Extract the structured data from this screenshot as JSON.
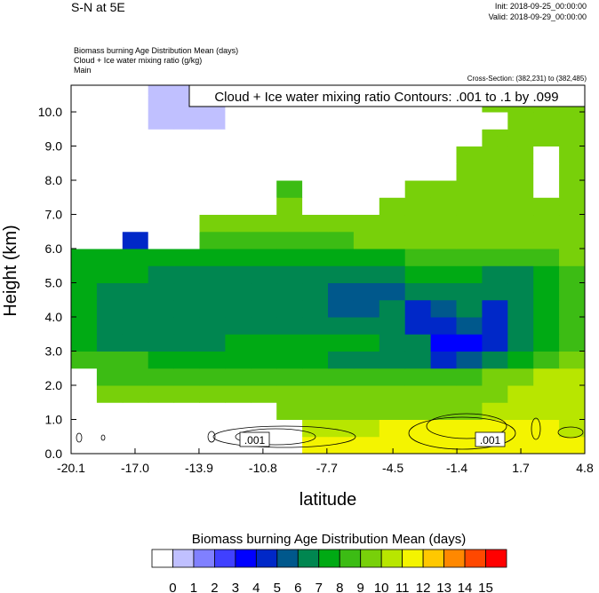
{
  "header": {
    "title": "S-N at 5E",
    "init": "Init: 2018-09-25_00:00:00",
    "valid": "Valid: 2018-09-29_00:00:00",
    "field1": "Biomass burning Age Distribution Mean   (days)",
    "field2": "Cloud + Ice water mixing ratio   (g/kg)",
    "field3": "Main",
    "cross_section": "Cross-Section: (382,231) to (382,485)"
  },
  "chart_data": {
    "type": "heatmap",
    "title": "Cloud + Ice water mixing ratio Contours: .001 to .1 by .099",
    "xlabel": "latitude",
    "ylabel": "Height (km)",
    "xlim": [
      -20.1,
      4.8
    ],
    "ylim": [
      0,
      10.78
    ],
    "x_ticks": [
      "-20.1",
      "-17.0",
      "-13.9",
      "-10.8",
      "-7.7",
      "-4.5",
      "-1.4",
      "1.7",
      "4.8"
    ],
    "x_tick_values": [
      -20.1,
      -17.0,
      -13.9,
      -10.8,
      -7.7,
      -4.5,
      -1.4,
      1.7,
      4.8
    ],
    "y_ticks": [
      "0.0",
      "1.0",
      "2.0",
      "3.0",
      "4.0",
      "5.0",
      "6.0",
      "7.0",
      "8.0",
      "9.0",
      "10.0"
    ],
    "y_tick_values": [
      0,
      1,
      2,
      3,
      4,
      5,
      6,
      7,
      8,
      9,
      10
    ],
    "grid_x_centers": [
      -19.5,
      -18.3,
      -17.0,
      -15.8,
      -14.5,
      -13.3,
      -12.0,
      -10.8,
      -9.5,
      -8.3,
      -7.0,
      -5.8,
      -4.5,
      -3.3,
      -2.0,
      -0.8,
      0.5,
      1.7,
      3.0,
      4.2
    ],
    "grid_row_height_km": 0.5,
    "values_bottom_to_top_days": [
      [
        -1,
        -1,
        -1,
        -1,
        -1,
        -1,
        -1,
        -1,
        -1,
        11.5,
        11.5,
        11.5,
        11.5,
        11.5,
        11.5,
        11.5,
        11.5,
        11.5,
        11.5,
        11.5
      ],
      [
        -1,
        -1,
        -1,
        -1,
        -1,
        -1,
        -1,
        -1,
        -1,
        10.5,
        10.5,
        10.5,
        11.5,
        11.5,
        11.5,
        11.5,
        11.5,
        11.5,
        11.5,
        10.5
      ],
      [
        -1,
        -1,
        -1,
        -1,
        -1,
        -1,
        -1,
        -1,
        9.5,
        9.5,
        9.5,
        9.5,
        9.5,
        9.5,
        9.5,
        9.5,
        10.5,
        10.5,
        10.5,
        10.5
      ],
      [
        -1,
        9.5,
        9.5,
        9.5,
        9.5,
        9.5,
        9.5,
        9.5,
        9.5,
        9.5,
        9.5,
        9.5,
        9.5,
        9.5,
        9.5,
        9.5,
        9.5,
        10.5,
        10.5,
        10.5
      ],
      [
        -1,
        8.5,
        8.5,
        8.5,
        8.5,
        8.5,
        8.5,
        8.5,
        8.5,
        8.5,
        8.5,
        8.5,
        8.5,
        8.5,
        8.5,
        8.5,
        9.5,
        9.5,
        10.5,
        10.5
      ],
      [
        8.5,
        8.5,
        8.5,
        7.5,
        7.5,
        7.5,
        7.5,
        7.5,
        7.5,
        7.5,
        6.5,
        6.5,
        6.5,
        6.5,
        4.5,
        5.5,
        6.5,
        7.5,
        8.5,
        9.5
      ],
      [
        7.5,
        6.5,
        6.5,
        6.5,
        6.5,
        6.5,
        7.5,
        7.5,
        7.5,
        7.5,
        7.5,
        7.5,
        6.5,
        6.5,
        3.5,
        3.5,
        4.5,
        6.5,
        7.5,
        8.5
      ],
      [
        7.5,
        6.5,
        6.5,
        6.5,
        6.5,
        6.5,
        6.5,
        6.5,
        6.5,
        6.5,
        6.5,
        6.5,
        6.5,
        4.5,
        4.5,
        5.5,
        4.5,
        6.5,
        7.5,
        8.5
      ],
      [
        7.5,
        6.5,
        6.5,
        6.5,
        6.5,
        6.5,
        6.5,
        6.5,
        6.5,
        6.5,
        5.5,
        5.5,
        6.5,
        4.5,
        5.5,
        6.5,
        4.5,
        6.5,
        7.5,
        8.5
      ],
      [
        7.5,
        6.5,
        6.5,
        6.5,
        6.5,
        6.5,
        6.5,
        6.5,
        6.5,
        6.5,
        5.5,
        5.5,
        5.5,
        6.5,
        6.5,
        6.5,
        6.5,
        6.5,
        7.5,
        8.5
      ],
      [
        7.5,
        7.5,
        7.5,
        6.5,
        6.5,
        6.5,
        6.5,
        6.5,
        6.5,
        6.5,
        6.5,
        6.5,
        6.5,
        7.5,
        7.5,
        7.5,
        6.5,
        6.5,
        7.5,
        8.5
      ],
      [
        7.5,
        7.5,
        7.5,
        7.5,
        7.5,
        7.5,
        7.5,
        7.5,
        7.5,
        7.5,
        7.5,
        7.5,
        7.5,
        8.5,
        8.5,
        8.5,
        8.5,
        8.5,
        8.5,
        9.5
      ],
      [
        -1,
        -1,
        4.5,
        -1,
        -1,
        8.5,
        8.5,
        8.5,
        8.5,
        8.5,
        8.5,
        9.5,
        9.5,
        9.5,
        9.5,
        9.5,
        9.5,
        9.5,
        9.5,
        9.5
      ],
      [
        -1,
        -1,
        -1,
        -1,
        -1,
        9.5,
        9.5,
        9.5,
        9.5,
        9.5,
        9.5,
        9.5,
        9.5,
        9.5,
        9.5,
        9.5,
        9.5,
        9.5,
        9.5,
        9.5
      ],
      [
        -1,
        -1,
        -1,
        -1,
        -1,
        -1,
        -1,
        -1,
        9.5,
        -1,
        -1,
        -1,
        9.5,
        9.5,
        9.5,
        9.5,
        9.5,
        9.5,
        9.5,
        9.5
      ],
      [
        -1,
        -1,
        -1,
        -1,
        -1,
        -1,
        -1,
        -1,
        8.5,
        -1,
        -1,
        -1,
        -1,
        9.5,
        9.5,
        9.5,
        9.5,
        9.5,
        -1,
        9.5
      ],
      [
        -1,
        -1,
        -1,
        -1,
        -1,
        -1,
        -1,
        -1,
        -1,
        -1,
        -1,
        -1,
        -1,
        -1,
        -1,
        9.5,
        9.5,
        9.5,
        -1,
        9.5
      ],
      [
        -1,
        -1,
        -1,
        -1,
        -1,
        -1,
        -1,
        -1,
        -1,
        -1,
        -1,
        -1,
        -1,
        -1,
        -1,
        9.5,
        9.5,
        9.5,
        -1,
        9.5
      ],
      [
        -1,
        -1,
        -1,
        -1,
        -1,
        -1,
        -1,
        -1,
        -1,
        -1,
        -1,
        -1,
        -1,
        -1,
        -1,
        -1,
        9,
        9.5,
        9.5,
        9.5
      ],
      [
        -1,
        -1,
        -1,
        0.5,
        0.5,
        0.5,
        -1,
        -1,
        -1,
        -1,
        -1,
        -1,
        -1,
        -1,
        -1,
        -1,
        -1,
        9.5,
        9.5,
        9.5
      ],
      [
        -1,
        -1,
        -1,
        0.5,
        0.5,
        0.5,
        -1,
        -1,
        -1,
        -1,
        -1,
        -1,
        -1,
        -1,
        -1,
        -1,
        9.5,
        9.5,
        9.5,
        9.5
      ],
      [
        -1,
        -1,
        -1,
        0.5,
        0.5,
        -1,
        0.5,
        -1,
        -1,
        -1,
        -1,
        -1,
        -1,
        -1,
        -1,
        -1,
        -1,
        9.5,
        9.5,
        9.5
      ]
    ],
    "contour_labels": [
      ".001",
      ".001"
    ],
    "colorbar": {
      "title": "Biomass burning Age Distribution Mean  (days)",
      "labels": [
        "0",
        "1",
        "2",
        "3",
        "4",
        "5",
        "6",
        "7",
        "8",
        "9",
        "10",
        "11",
        "12",
        "13",
        "14",
        "15"
      ],
      "colors": [
        "#ffffff",
        "#c0c0ff",
        "#8080ff",
        "#4040ff",
        "#0000ff",
        "#0028c8",
        "#00588c",
        "#008650",
        "#00aa14",
        "#3cbc14",
        "#78d00a",
        "#b8e600",
        "#f4f400",
        "#ffc800",
        "#ff8800",
        "#ff4800",
        "#ff0000"
      ]
    }
  }
}
